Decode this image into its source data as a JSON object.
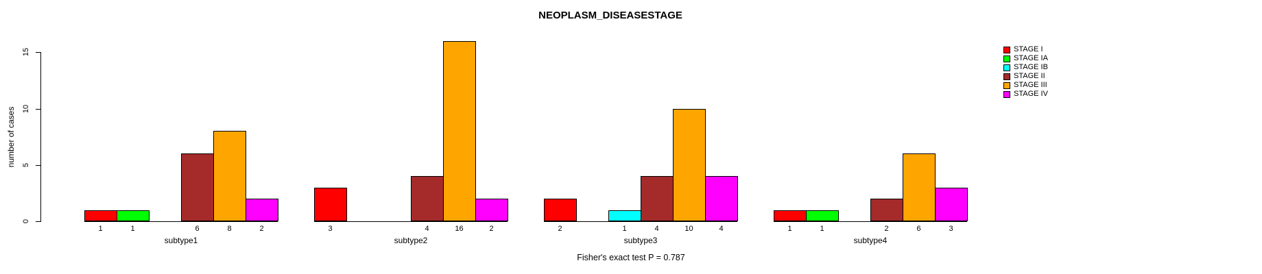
{
  "chart_data": {
    "type": "bar",
    "title": "NEOPLASM_DISEASESTAGE",
    "ylabel": "number of cases",
    "xlabel": "",
    "footer": "Fisher's exact test P = 0.787",
    "categories": [
      "subtype1",
      "subtype2",
      "subtype3",
      "subtype4"
    ],
    "series": [
      {
        "name": "STAGE I",
        "color": "#FF0000",
        "values": [
          1,
          3,
          2,
          1
        ]
      },
      {
        "name": "STAGE IA",
        "color": "#00FF00",
        "values": [
          1,
          0,
          0,
          1
        ]
      },
      {
        "name": "STAGE IB",
        "color": "#00FFFF",
        "values": [
          0,
          0,
          1,
          0
        ]
      },
      {
        "name": "STAGE II",
        "color": "#A52A2A",
        "values": [
          6,
          4,
          4,
          2
        ]
      },
      {
        "name": "STAGE III",
        "color": "#FFA500",
        "values": [
          8,
          16,
          10,
          6
        ]
      },
      {
        "name": "STAGE IV",
        "color": "#FF00FF",
        "values": [
          2,
          2,
          4,
          3
        ]
      }
    ],
    "yticks": [
      "0",
      "5",
      "10",
      "15"
    ],
    "ylim": [
      0,
      16
    ],
    "grid": false,
    "legend_position": "top-right",
    "bar_value_labels": "shown under each nonzero bar",
    "axis_color": "#000000",
    "background_color": "#FFFFFF"
  }
}
